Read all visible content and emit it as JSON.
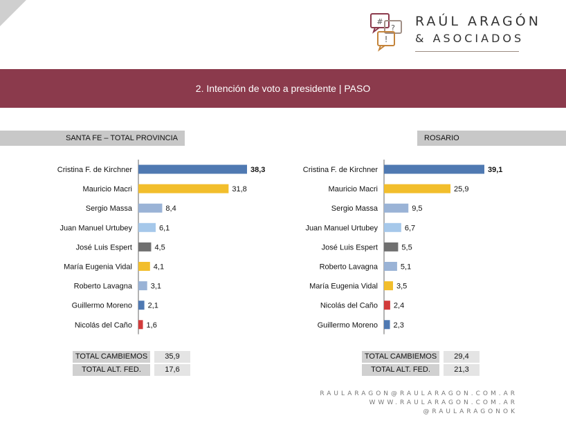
{
  "brand": {
    "name_line1": "RAÚL ARAGÓN",
    "name_line2": "& ASOCIADOS",
    "bubble_glyphs": [
      "#",
      "?",
      "!"
    ]
  },
  "header": {
    "title": "2. Intención de voto a presidente | PASO"
  },
  "colors": {
    "band": "#8b3a4c",
    "dark_blue": "#4f79b2",
    "yellow": "#f2be2c",
    "light_blue": "#9ab3d6",
    "sky_blue": "#a6c8ea",
    "gray": "#707070",
    "red": "#d23b3b",
    "axis": "#666666"
  },
  "chart_data": [
    {
      "type": "bar",
      "orientation": "horizontal",
      "title": "SANTA FE – TOTAL PROVINCIA",
      "categories": [
        "Cristina F. de Kirchner",
        "Mauricio Macri",
        "Sergio Massa",
        "Juan Manuel Urtubey",
        "José Luis Espert",
        "María Eugenia Vidal",
        "Roberto Lavagna",
        "Guillermo Moreno",
        "Nicolás del Caño"
      ],
      "values": [
        38.3,
        31.8,
        8.4,
        6.1,
        4.5,
        4.1,
        3.1,
        2.1,
        1.6
      ],
      "value_labels": [
        "38,3",
        "31,8",
        "8,4",
        "6,1",
        "4,5",
        "4,1",
        "3,1",
        "2,1",
        "1,6"
      ],
      "bold_first": true,
      "colors": [
        "dark_blue",
        "yellow",
        "light_blue",
        "sky_blue",
        "gray",
        "yellow",
        "light_blue",
        "dark_blue",
        "red"
      ],
      "xlim": [
        0,
        40
      ],
      "totals": [
        {
          "label": "TOTAL CAMBIEMOS",
          "value": "35,9"
        },
        {
          "label": "TOTAL ALT. FED.",
          "value": "17,6"
        }
      ]
    },
    {
      "type": "bar",
      "orientation": "horizontal",
      "title": "ROSARIO",
      "categories": [
        "Cristina F. de Kirchner",
        "Mauricio Macri",
        "Sergio Massa",
        "Juan Manuel Urtubey",
        "José Luis Espert",
        "Roberto Lavagna",
        "María Eugenia Vidal",
        "Nicolás del Caño",
        "Guillermo Moreno"
      ],
      "values": [
        39.1,
        25.9,
        9.5,
        6.7,
        5.5,
        5.1,
        3.5,
        2.4,
        2.3
      ],
      "value_labels": [
        "39,1",
        "25,9",
        "9,5",
        "6,7",
        "5,5",
        "5,1",
        "3,5",
        "2,4",
        "2,3"
      ],
      "bold_first": true,
      "colors": [
        "dark_blue",
        "yellow",
        "light_blue",
        "sky_blue",
        "gray",
        "light_blue",
        "yellow",
        "red",
        "dark_blue"
      ],
      "xlim": [
        0,
        40
      ],
      "totals": [
        {
          "label": "TOTAL CAMBIEMOS",
          "value": "29,4"
        },
        {
          "label": "TOTAL ALT. FED.",
          "value": "21,3"
        }
      ]
    }
  ],
  "footer": {
    "email": "RAULARAGON@RAULARAGON.COM.AR",
    "web": "WWW.RAULARAGON.COM.AR",
    "social": "@RAULARAGONOK"
  }
}
